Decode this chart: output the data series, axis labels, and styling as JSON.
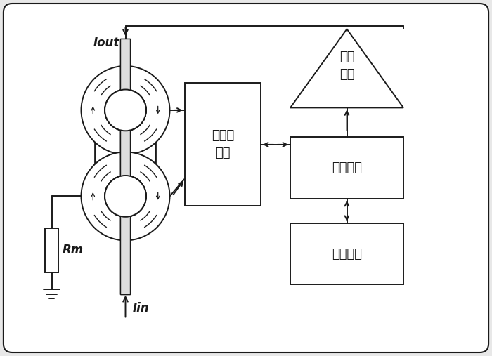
{
  "bg_color": "#e8e8e8",
  "line_color": "#1a1a1a",
  "box_color": "#ffffff",
  "fig_width": 7.0,
  "fig_height": 5.07,
  "dpi": 100,
  "mod_text": "调制与\n解调",
  "sig_text": "信号调理",
  "sta_text": "状态监测",
  "amp_text": "功率\n放大",
  "iout_text": "Iout",
  "iin_text": "Iin",
  "rm_text": "Rm"
}
